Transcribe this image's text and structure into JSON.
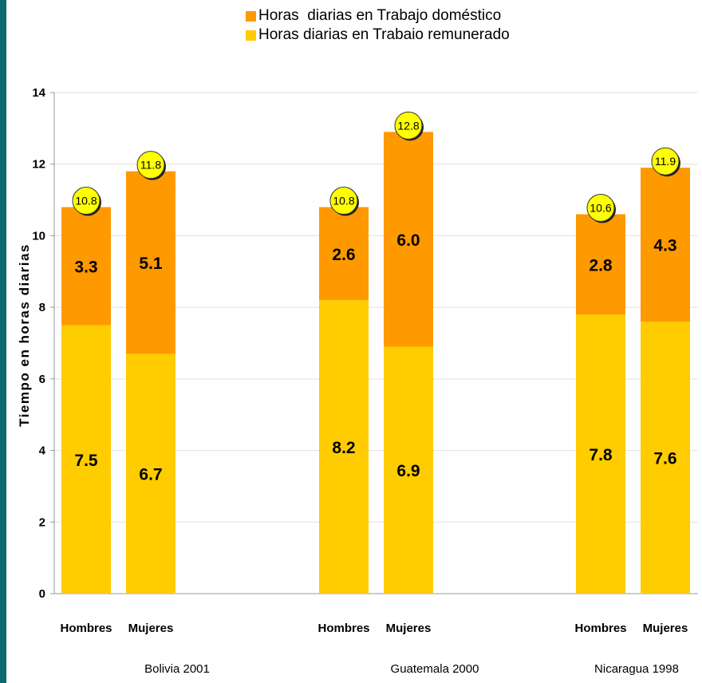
{
  "colors": {
    "domestic": "#ff9900",
    "paid": "#ffcc00",
    "badge": "#ffff00",
    "sidebar": "#0b6a70",
    "axis": "#999999",
    "grid": "#e0e0e0"
  },
  "chart_data": {
    "type": "bar",
    "stacked": true,
    "title": "",
    "ylabel": "Tiempo en horas diarias",
    "ylim": [
      0,
      14
    ],
    "yticks": [
      0,
      2,
      4,
      6,
      8,
      10,
      12,
      14
    ],
    "grid": true,
    "legend_position": "top",
    "legend": [
      {
        "name": "Horas  diarias en Trabajo doméstico",
        "color": "#ff9900"
      },
      {
        "name": "Horas diarias en Trabaio remunerado",
        "color": "#ffcc00"
      }
    ],
    "groups": [
      {
        "name": "Bolivia 2001",
        "bars": [
          {
            "category": "Hombres",
            "paid": 7.5,
            "domestic": 3.3,
            "total": "10.8"
          },
          {
            "category": "Mujeres",
            "paid": 6.7,
            "domestic": 5.1,
            "total": "11.8"
          }
        ]
      },
      {
        "name": "Guatemala 2000",
        "bars": [
          {
            "category": "Hombres",
            "paid": 8.2,
            "domestic": 2.6,
            "total": "10.8"
          },
          {
            "category": "Mujeres",
            "paid": 6.9,
            "domestic": 6.0,
            "total": "12.8"
          }
        ]
      },
      {
        "name": "Nicaragua 1998",
        "bars": [
          {
            "category": "Hombres",
            "paid": 7.8,
            "domestic": 2.8,
            "total": "10.6"
          },
          {
            "category": "Mujeres",
            "paid": 7.6,
            "domestic": 4.3,
            "total": "11.9"
          }
        ]
      }
    ]
  }
}
